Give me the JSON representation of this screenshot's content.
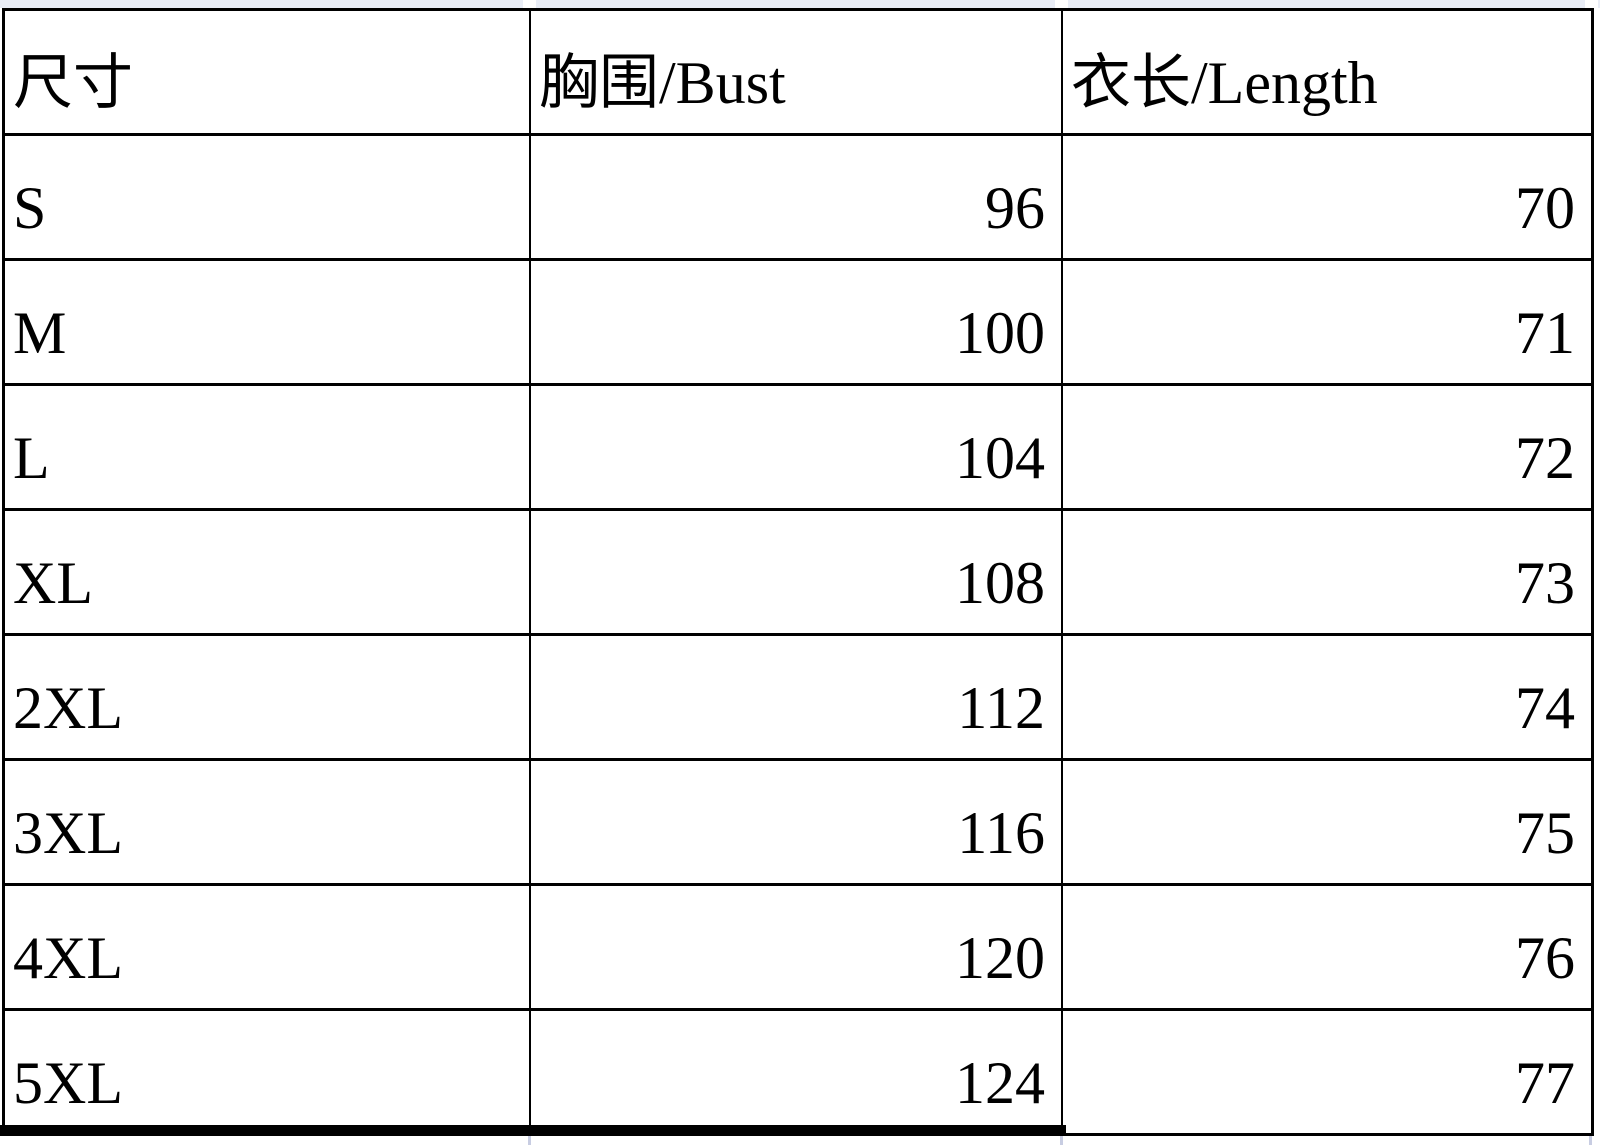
{
  "table": {
    "headers": {
      "size": "尺寸",
      "bust": "胸围/Bust",
      "length": "衣长/Length"
    },
    "rows": [
      {
        "size": "S",
        "bust": "96",
        "length": "70"
      },
      {
        "size": "M",
        "bust": "100",
        "length": "71"
      },
      {
        "size": "L",
        "bust": "104",
        "length": "72"
      },
      {
        "size": "XL",
        "bust": "108",
        "length": "73"
      },
      {
        "size": "2XL",
        "bust": "112",
        "length": "74"
      },
      {
        "size": "3XL",
        "bust": "116",
        "length": "75"
      },
      {
        "size": "4XL",
        "bust": "120",
        "length": "76"
      },
      {
        "size": "5XL",
        "bust": "124",
        "length": "77"
      }
    ]
  },
  "colors": {
    "border": "#000000",
    "text": "#000000",
    "background": "#ffffff",
    "top_gridline_strip": "#e9edf6",
    "gridline_stub": "#c8cde2"
  }
}
